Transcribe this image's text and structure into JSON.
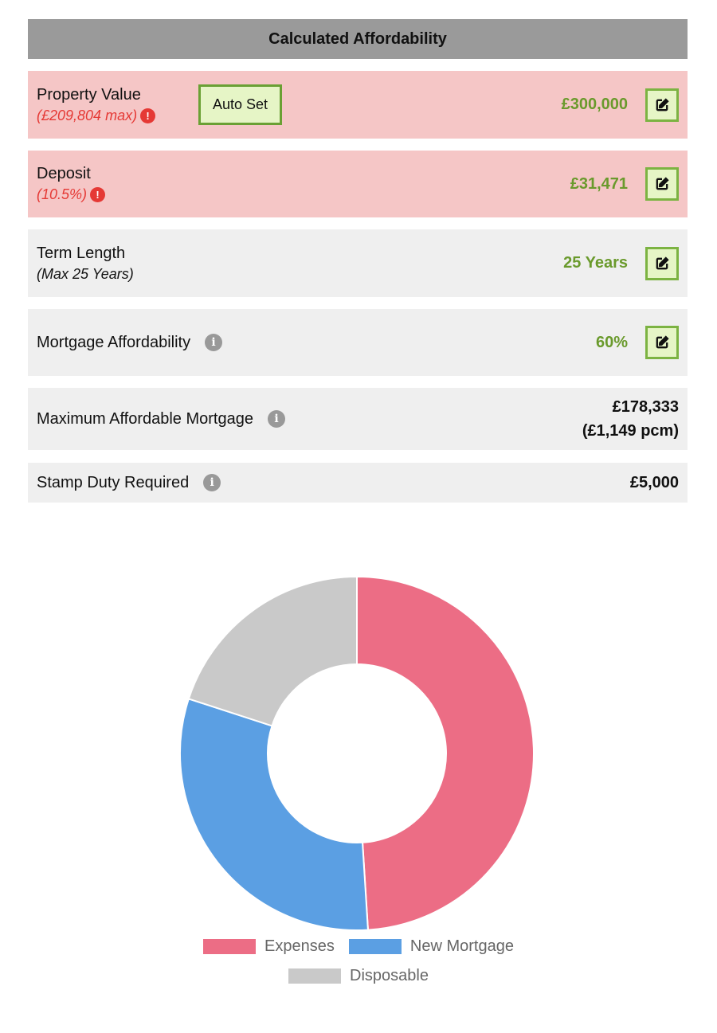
{
  "header": {
    "title": "Calculated Affordability"
  },
  "rows": {
    "property_value": {
      "label": "Property Value",
      "sub": "(£209,804 max)",
      "value": "£300,000",
      "auto_set": "Auto Set"
    },
    "deposit": {
      "label": "Deposit",
      "sub": "(10.5%)",
      "value": "£31,471"
    },
    "term_length": {
      "label": "Term Length",
      "sub": "(Max 25 Years)",
      "value": "25 Years"
    },
    "mortgage_affordability": {
      "label": "Mortgage Affordability",
      "value": "60%"
    },
    "max_mortgage": {
      "label": "Maximum Affordable Mortgage",
      "value": "£178,333",
      "value2": "(£1,149 pcm)"
    },
    "stamp_duty": {
      "label": "Stamp Duty Required",
      "value": "£5,000"
    }
  },
  "icons": {
    "alert": "exclamation-circle-icon",
    "info": "info-circle-icon",
    "edit": "edit-square-icon"
  },
  "colors": {
    "warn_bg": "#f5c6c6",
    "accent_green": "#6a9a2c",
    "alert_red": "#e53935"
  },
  "chart_data": {
    "type": "pie",
    "variant": "doughnut",
    "categories": [
      "Expenses",
      "New Mortgage",
      "Disposable"
    ],
    "values": [
      49,
      31,
      20
    ],
    "colors": [
      "#ec6d85",
      "#5b9fe3",
      "#c9c9c9"
    ],
    "legend": "bottom"
  }
}
